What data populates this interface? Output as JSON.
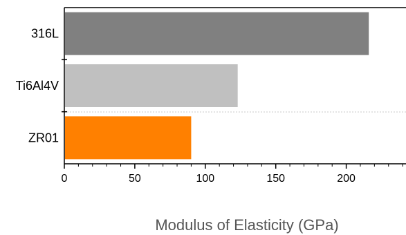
{
  "chart_data": {
    "type": "bar",
    "orientation": "horizontal",
    "categories": [
      "316L",
      "Ti6Al4V",
      "ZR01"
    ],
    "values": [
      216,
      123,
      90
    ],
    "colors": [
      "#808080",
      "#c0c0c0",
      "#ff8000"
    ],
    "xlabel": "Modulus of Elasticity (GPa)",
    "ylabel": "",
    "xlim": [
      0,
      240
    ],
    "xticks": [
      0,
      50,
      100,
      150,
      200
    ],
    "minor_tick_step": 10,
    "grid": false,
    "legend": "none"
  }
}
